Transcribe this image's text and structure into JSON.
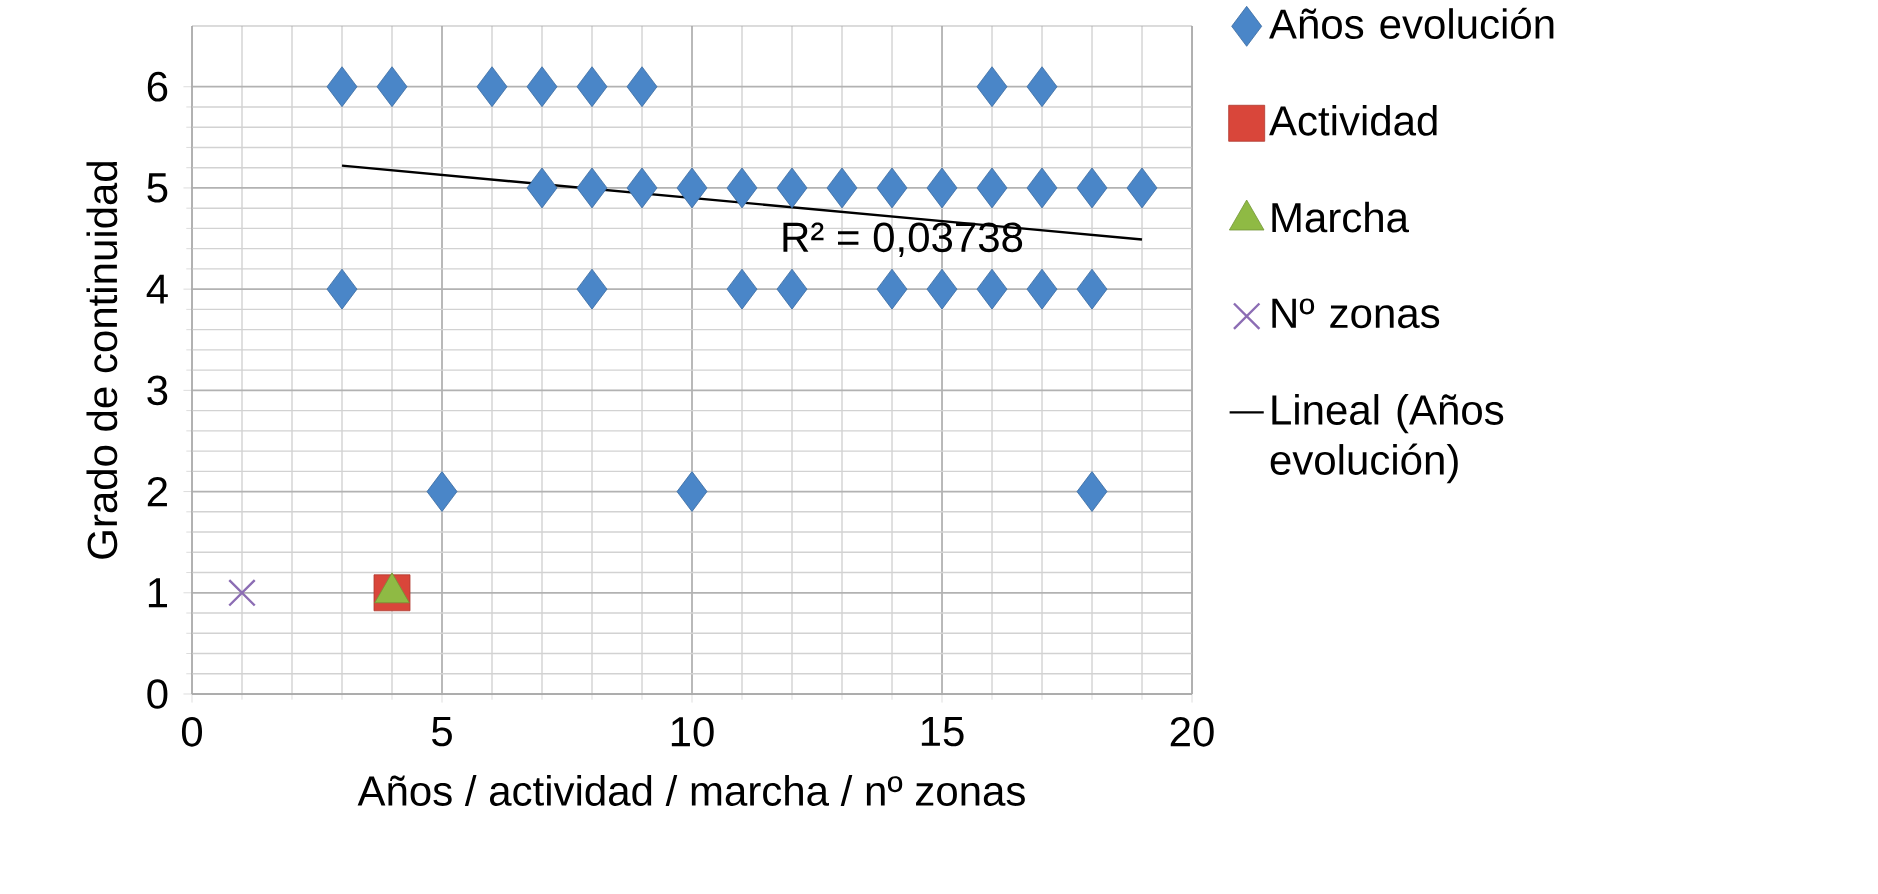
{
  "chart_data": {
    "type": "scatter",
    "xlabel": "Años / actividad / marcha / nº zonas",
    "ylabel": "Grado de continuidad",
    "xlim": [
      0,
      20
    ],
    "ylim": [
      0,
      6.6
    ],
    "xticks": [
      0,
      5,
      10,
      15,
      20
    ],
    "yticks": [
      0,
      1,
      2,
      3,
      4,
      5,
      6
    ],
    "grid": true,
    "legend": "right",
    "annotations": [
      "R² = 0,03738"
    ],
    "series": [
      {
        "name": "Años evolución",
        "color": "#4a86c8",
        "marker": "diamond",
        "x": [
          3,
          4,
          6,
          7,
          8,
          9,
          16,
          17,
          7,
          8,
          9,
          10,
          11,
          12,
          13,
          14,
          15,
          16,
          17,
          18,
          19,
          3,
          8,
          11,
          12,
          14,
          15,
          16,
          17,
          18,
          5,
          10,
          18
        ],
        "values": [
          6,
          6,
          6,
          6,
          6,
          6,
          6,
          6,
          5,
          5,
          5,
          5,
          5,
          5,
          5,
          5,
          5,
          5,
          5,
          5,
          5,
          4,
          4,
          4,
          4,
          4,
          4,
          4,
          4,
          4,
          2,
          2,
          2
        ]
      },
      {
        "name": "Actividad",
        "color": "#d9463a",
        "marker": "square",
        "x": [
          4
        ],
        "values": [
          1
        ]
      },
      {
        "name": "Marcha",
        "color": "#8fba44",
        "marker": "triangle",
        "x": [
          4
        ],
        "values": [
          1
        ]
      },
      {
        "name": "Nº zonas",
        "color": "#8c6db4",
        "marker": "cross",
        "x": [
          1
        ],
        "values": [
          1
        ]
      },
      {
        "name": "Lineal (Años evolución)",
        "type": "line",
        "color": "#000000",
        "marker": "none",
        "x": [
          3,
          19
        ],
        "values": [
          5.22,
          4.49
        ]
      }
    ]
  }
}
